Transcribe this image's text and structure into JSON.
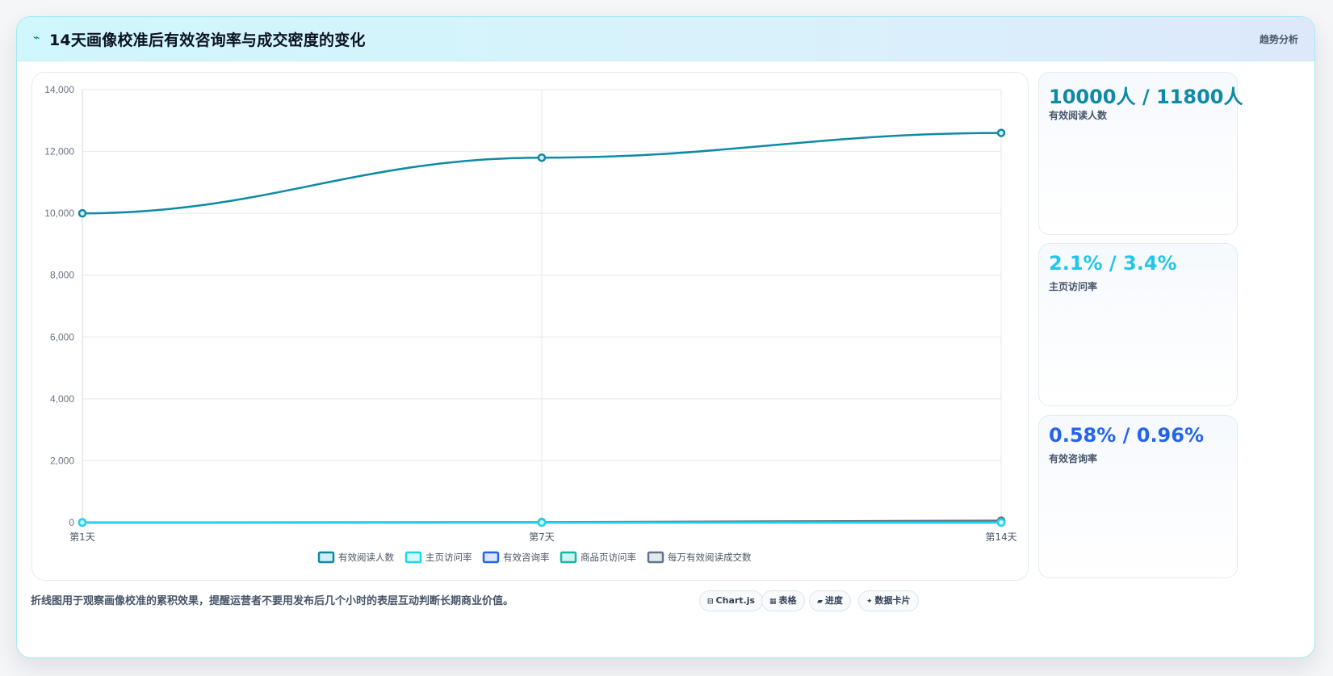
{
  "header": {
    "title": "14天画像校准后有效咨询率与成交密度的变化",
    "tag": "趋势分析",
    "icon": "trend-icon"
  },
  "chart_data": {
    "type": "line",
    "categories": [
      "第1天",
      "第7天",
      "第14天"
    ],
    "ylim": [
      0,
      14000
    ],
    "yticks": [
      0,
      2000,
      4000,
      6000,
      8000,
      10000,
      12000,
      14000
    ],
    "grid": true,
    "legend_position": "bottom",
    "series": [
      {
        "name": "有效阅读人数",
        "values": [
          10000,
          11800,
          12600
        ],
        "color": "#0e8aa4",
        "fill": "#cfeff4"
      },
      {
        "name": "主页访问率",
        "values": [
          2.1,
          3.4,
          3.8
        ],
        "color": "#22d3ee",
        "fill": "#cffafe"
      },
      {
        "name": "有效咨询率",
        "values": [
          0.58,
          0.96,
          1.1
        ],
        "color": "#2563eb",
        "fill": "#dbe7fe"
      },
      {
        "name": "商品页访问率",
        "values": [
          1.2,
          1.9,
          2.3
        ],
        "color": "#14b8a6",
        "fill": "#ccf3ee"
      },
      {
        "name": "每万有效阅读成交数",
        "values": [
          5,
          16,
          62
        ],
        "color": "#64748b",
        "fill": "#e2e8f0"
      }
    ]
  },
  "stats": [
    {
      "value": "10000人 / 11800人",
      "label": "有效阅读人数",
      "color": "#0e8aa4"
    },
    {
      "value": "2.1% / 3.4%",
      "label": "主页访问率",
      "color": "#22c6e6"
    },
    {
      "value": "0.58% / 0.96%",
      "label": "有效咨询率",
      "color": "#2563eb"
    }
  ],
  "footer": {
    "note": "折线图用于观察画像校准的累积效果，提醒运营者不要用发布后几个小时的表层互动判断长期商业价值。",
    "pills": [
      {
        "label": "Chart.js",
        "icon": "chart-icon",
        "glyph": "⊟"
      },
      {
        "label": "表格",
        "icon": "table-icon",
        "glyph": "▦"
      },
      {
        "label": "进度",
        "icon": "progress-icon",
        "glyph": "▰"
      },
      {
        "label": "数据卡片",
        "icon": "card-icon",
        "glyph": "✦"
      }
    ]
  }
}
